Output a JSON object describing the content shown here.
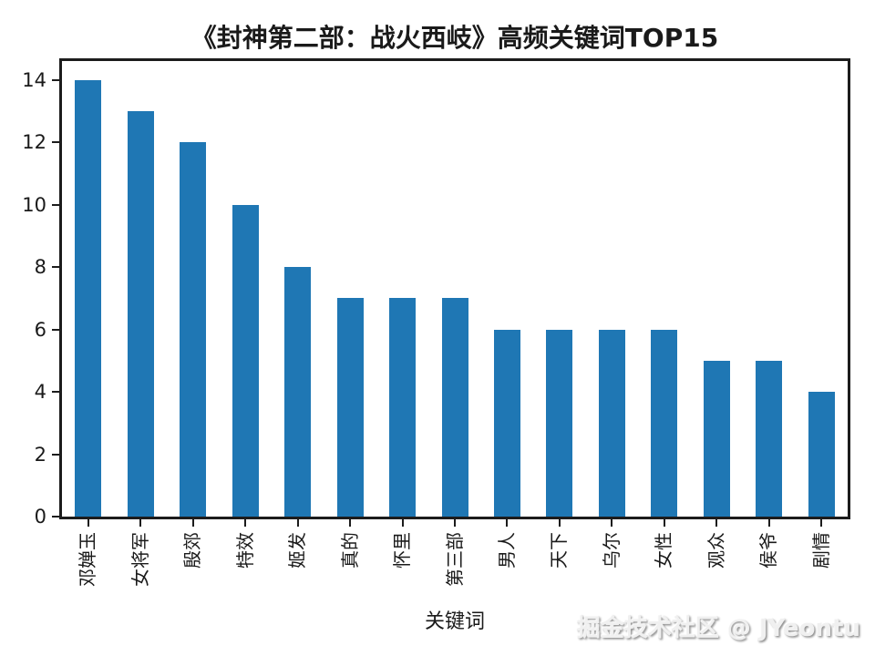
{
  "chart_data": {
    "type": "bar",
    "title": "《封神第二部：战火西岐》高频关键词TOP15",
    "xlabel": "关键词",
    "ylabel": "",
    "categories": [
      "邓婵玉",
      "女将军",
      "殷郊",
      "特效",
      "姬发",
      "真的",
      "怀里",
      "第三部",
      "男人",
      "天下",
      "乌尔",
      "女性",
      "观众",
      "侯爷",
      "剧情"
    ],
    "values": [
      14,
      13,
      12,
      10,
      8,
      7,
      7,
      7,
      6,
      6,
      6,
      6,
      5,
      5,
      4
    ],
    "yticks": [
      0,
      2,
      4,
      6,
      8,
      10,
      12,
      14
    ],
    "ylim": [
      0,
      14.6
    ],
    "bar_color": "#1f77b4",
    "axis_color": "#1c1c1c",
    "grid": false,
    "legend_position": "none"
  },
  "watermark": "掘金技术社区 @ JYeontu"
}
